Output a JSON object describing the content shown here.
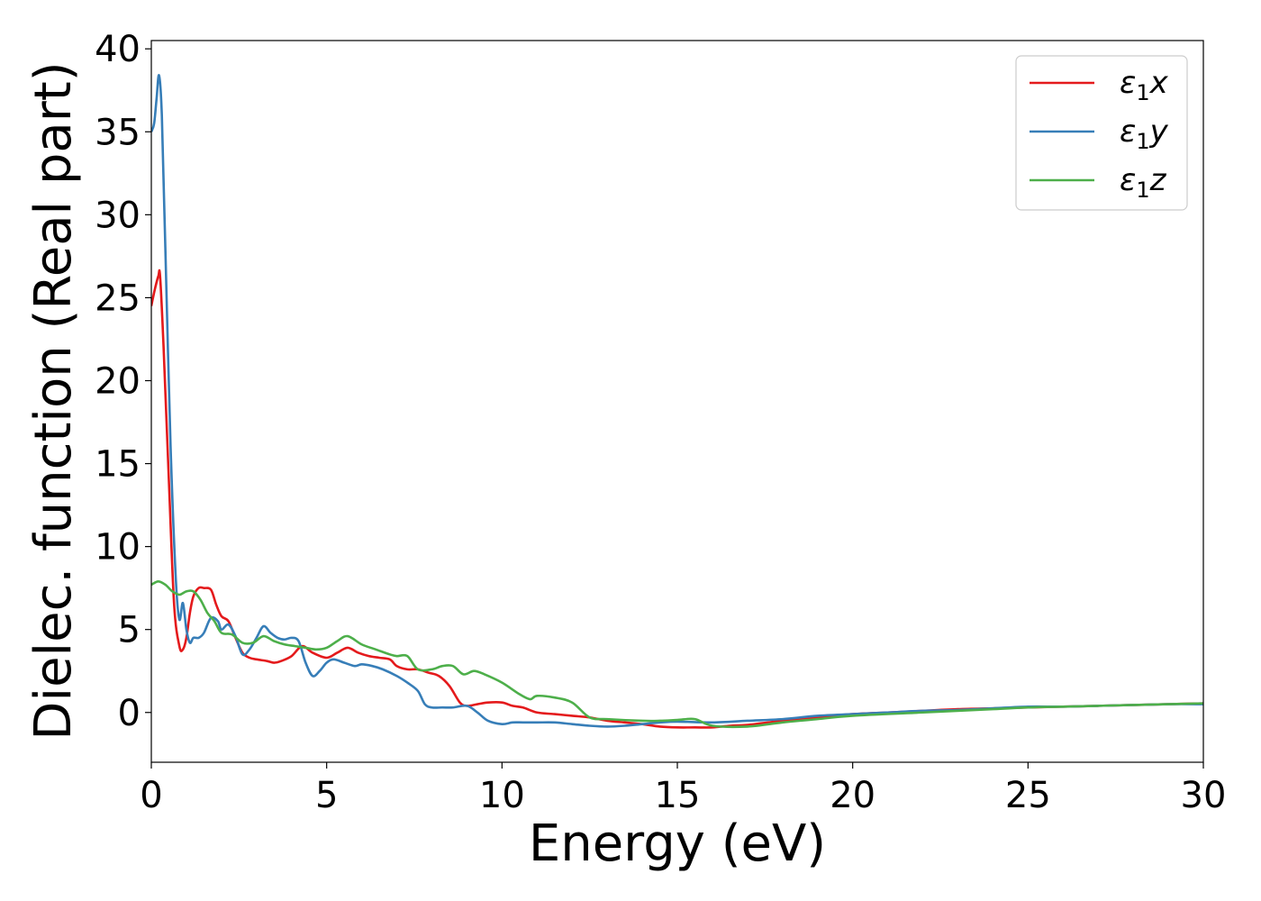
{
  "chart_data": {
    "type": "line",
    "xlabel": "Energy (eV)",
    "ylabel": "Dielec. function (Real part)",
    "xlim": [
      0,
      30
    ],
    "ylim": [
      -3,
      40.5
    ],
    "xticks": [
      0,
      5,
      10,
      15,
      20,
      25,
      30
    ],
    "xtick_labels": [
      "0",
      "5",
      "10",
      "15",
      "20",
      "25",
      "30"
    ],
    "yticks": [
      0,
      5,
      10,
      15,
      20,
      25,
      30,
      35,
      40
    ],
    "ytick_labels": [
      "0",
      "5",
      "10",
      "15",
      "20",
      "25",
      "30",
      "35",
      "40"
    ],
    "grid": false,
    "legend_position": "top-right",
    "series": [
      {
        "name": "ε1x",
        "legend_main": "ε",
        "legend_sub": "1",
        "legend_tail": "x",
        "color": "#e41a1c",
        "x": [
          0,
          0.1,
          0.2,
          0.25,
          0.35,
          0.5,
          0.65,
          0.8,
          0.9,
          1.0,
          1.1,
          1.2,
          1.35,
          1.5,
          1.7,
          1.85,
          2.0,
          2.2,
          2.4,
          2.6,
          2.8,
          3.0,
          3.3,
          3.5,
          3.7,
          4.0,
          4.3,
          4.6,
          5.0,
          5.3,
          5.6,
          5.9,
          6.2,
          6.5,
          6.8,
          7.0,
          7.3,
          7.6,
          7.9,
          8.2,
          8.5,
          8.8,
          9.0,
          9.3,
          9.6,
          10.0,
          10.3,
          10.6,
          11.0,
          11.5,
          12.0,
          12.5,
          13.0,
          13.5,
          14.0,
          14.5,
          15.0,
          15.5,
          16.0,
          16.5,
          17.0,
          18.0,
          19.0,
          20.0,
          21.0,
          22.0,
          23.0,
          24.0,
          25.0,
          26.0,
          27.0,
          28.0,
          29.0,
          30.0
        ],
        "y": [
          24.5,
          25.5,
          26.3,
          26.3,
          22.0,
          14.0,
          6.5,
          4.0,
          3.8,
          4.5,
          6.0,
          7.0,
          7.5,
          7.5,
          7.4,
          6.5,
          5.8,
          5.5,
          4.5,
          3.6,
          3.3,
          3.2,
          3.1,
          3.0,
          3.1,
          3.4,
          4.0,
          3.6,
          3.3,
          3.6,
          3.9,
          3.6,
          3.4,
          3.3,
          3.2,
          2.8,
          2.6,
          2.6,
          2.4,
          2.2,
          1.6,
          0.6,
          0.4,
          0.5,
          0.6,
          0.6,
          0.4,
          0.3,
          0.0,
          -0.1,
          -0.2,
          -0.3,
          -0.5,
          -0.6,
          -0.7,
          -0.85,
          -0.9,
          -0.9,
          -0.9,
          -0.8,
          -0.75,
          -0.5,
          -0.3,
          -0.1,
          0.0,
          0.1,
          0.2,
          0.25,
          0.3,
          0.35,
          0.4,
          0.45,
          0.5,
          0.55
        ]
      },
      {
        "name": "ε1y",
        "legend_main": "ε",
        "legend_sub": "1",
        "legend_tail": "y",
        "color": "#377eb8",
        "x": [
          0,
          0.08,
          0.15,
          0.22,
          0.3,
          0.4,
          0.55,
          0.7,
          0.8,
          0.9,
          1.0,
          1.1,
          1.2,
          1.35,
          1.5,
          1.7,
          1.9,
          2.0,
          2.2,
          2.4,
          2.6,
          2.8,
          3.0,
          3.2,
          3.4,
          3.6,
          3.8,
          4.0,
          4.2,
          4.4,
          4.6,
          4.8,
          5.0,
          5.2,
          5.5,
          5.8,
          6.0,
          6.3,
          6.6,
          7.0,
          7.3,
          7.6,
          7.8,
          8.0,
          8.3,
          8.6,
          9.0,
          9.3,
          9.6,
          10.0,
          10.3,
          10.6,
          11.0,
          11.5,
          12.0,
          12.5,
          13.0,
          13.5,
          14.0,
          14.5,
          15.0,
          16.0,
          17.0,
          18.0,
          19.0,
          20.0,
          21.0,
          22.0,
          23.0,
          24.0,
          25.0,
          26.0,
          27.0,
          28.0,
          29.0,
          30.0
        ],
        "y": [
          35.0,
          35.5,
          37.0,
          38.4,
          36.0,
          28.0,
          16.0,
          8.0,
          5.6,
          6.6,
          5.0,
          4.2,
          4.5,
          4.5,
          4.8,
          5.7,
          5.5,
          5.0,
          5.3,
          4.6,
          3.5,
          3.8,
          4.5,
          5.2,
          4.8,
          4.5,
          4.4,
          4.5,
          4.3,
          3.0,
          2.2,
          2.5,
          3.0,
          3.2,
          3.0,
          2.8,
          2.9,
          2.8,
          2.6,
          2.2,
          1.8,
          1.3,
          0.5,
          0.3,
          0.3,
          0.3,
          0.4,
          0.0,
          -0.5,
          -0.7,
          -0.6,
          -0.6,
          -0.6,
          -0.6,
          -0.7,
          -0.8,
          -0.85,
          -0.8,
          -0.7,
          -0.6,
          -0.55,
          -0.6,
          -0.5,
          -0.4,
          -0.2,
          -0.1,
          0.0,
          0.1,
          0.15,
          0.25,
          0.35,
          0.35,
          0.4,
          0.45,
          0.5,
          0.5
        ]
      },
      {
        "name": "ε1z",
        "legend_main": "ε",
        "legend_sub": "1",
        "legend_tail": "z",
        "color": "#4daf4a",
        "x": [
          0,
          0.2,
          0.4,
          0.6,
          0.8,
          1.0,
          1.2,
          1.4,
          1.6,
          1.8,
          2.0,
          2.3,
          2.6,
          2.9,
          3.2,
          3.5,
          3.8,
          4.1,
          4.4,
          4.7,
          5.0,
          5.3,
          5.6,
          6.0,
          6.4,
          6.8,
          7.0,
          7.3,
          7.6,
          8.0,
          8.3,
          8.6,
          8.9,
          9.2,
          9.5,
          10.0,
          10.5,
          10.8,
          11.0,
          11.5,
          12.0,
          12.5,
          13.0,
          14.0,
          14.5,
          15.0,
          15.5,
          16.0,
          17.0,
          18.0,
          19.0,
          20.0,
          22.0,
          24.0,
          25.0,
          26.0,
          27.0,
          28.0,
          29.0,
          30.0
        ],
        "y": [
          7.7,
          7.9,
          7.7,
          7.3,
          7.1,
          7.3,
          7.3,
          6.8,
          6.0,
          5.5,
          4.8,
          4.7,
          4.2,
          4.2,
          4.6,
          4.3,
          4.1,
          4.0,
          3.9,
          3.8,
          3.9,
          4.3,
          4.6,
          4.1,
          3.8,
          3.5,
          3.4,
          3.4,
          2.6,
          2.6,
          2.8,
          2.8,
          2.3,
          2.5,
          2.3,
          1.8,
          1.1,
          0.8,
          1.0,
          0.9,
          0.6,
          -0.3,
          -0.4,
          -0.5,
          -0.5,
          -0.45,
          -0.4,
          -0.8,
          -0.85,
          -0.6,
          -0.4,
          -0.2,
          0.0,
          0.2,
          0.3,
          0.35,
          0.4,
          0.45,
          0.5,
          0.55
        ]
      }
    ]
  }
}
